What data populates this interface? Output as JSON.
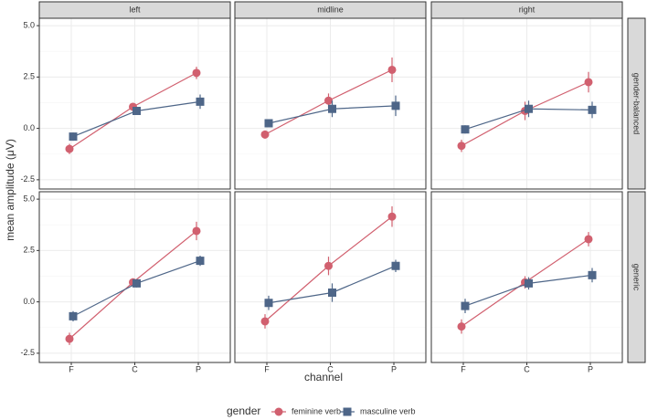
{
  "chart_data": {
    "type": "line",
    "ylabel": "mean amplitude (μV)",
    "xlabel": "channel",
    "legend_title": "gender",
    "categories": [
      "F",
      "C",
      "P"
    ],
    "ylim": [
      -2.95,
      5.36
    ],
    "yticks": [
      -2.5,
      {
        "value": 0,
        "label": "0.0"
      },
      2.5,
      {
        "value": 5,
        "label": "5.0"
      }
    ],
    "columns": [
      "left",
      "midline",
      "right"
    ],
    "rows": [
      "gender-balanced",
      "generic"
    ],
    "series": [
      {
        "name": "feminine verb",
        "color": "#d1606f"
      },
      {
        "name": "masculine verb",
        "color": "#4e6688"
      }
    ],
    "panels": [
      [
        {
          "series": [
            {
              "values": [
                -1.0,
                1.05,
                2.7
              ],
              "errors": [
                0.25,
                0.15,
                0.3
              ]
            },
            {
              "values": [
                -0.4,
                0.85,
                1.3
              ],
              "errors": [
                0.2,
                0.15,
                0.35
              ]
            }
          ]
        },
        {
          "series": [
            {
              "values": [
                -0.3,
                1.35,
                2.85
              ],
              "errors": [
                0.2,
                0.35,
                0.6
              ]
            },
            {
              "values": [
                0.25,
                0.95,
                1.1
              ],
              "errors": [
                0.2,
                0.4,
                0.5
              ]
            }
          ]
        },
        {
          "series": [
            {
              "values": [
                -0.85,
                0.85,
                2.25
              ],
              "errors": [
                0.3,
                0.45,
                0.5
              ]
            },
            {
              "values": [
                -0.05,
                0.95,
                0.9
              ],
              "errors": [
                0.2,
                0.4,
                0.4
              ]
            }
          ]
        }
      ],
      [
        {
          "series": [
            {
              "values": [
                -1.8,
                0.95,
                3.45
              ],
              "errors": [
                0.3,
                0.2,
                0.45
              ]
            },
            {
              "values": [
                -0.7,
                0.9,
                2.0
              ],
              "errors": [
                0.25,
                0.2,
                0.25
              ]
            }
          ]
        },
        {
          "series": [
            {
              "values": [
                -0.95,
                1.75,
                4.15
              ],
              "errors": [
                0.35,
                0.45,
                0.5
              ]
            },
            {
              "values": [
                -0.05,
                0.45,
                1.75
              ],
              "errors": [
                0.35,
                0.45,
                0.3
              ]
            }
          ]
        },
        {
          "series": [
            {
              "values": [
                -1.2,
                0.95,
                3.05
              ],
              "errors": [
                0.35,
                0.3,
                0.35
              ]
            },
            {
              "values": [
                -0.2,
                0.9,
                1.3
              ],
              "errors": [
                0.35,
                0.3,
                0.35
              ]
            }
          ]
        }
      ]
    ]
  }
}
